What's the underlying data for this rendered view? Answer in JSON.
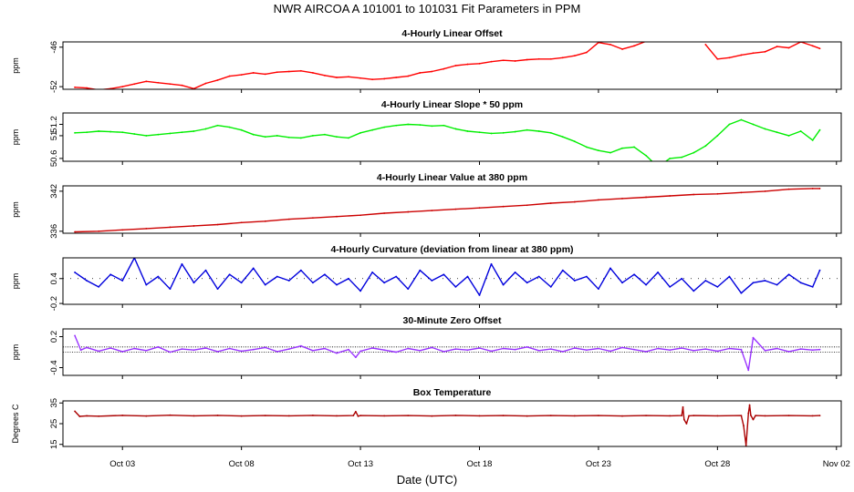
{
  "figure": {
    "title": "NWR   AIRCOA A   101001 to 101031   Fit Parameters in PPM",
    "xlabel": "Date (UTC)",
    "x_tick_labels": [
      "Oct 03",
      "Oct 08",
      "Oct 13",
      "Oct 18",
      "Oct 23",
      "Oct 28",
      "Nov 02"
    ]
  },
  "chart_data": [
    {
      "type": "line",
      "title": "4-Hourly Linear Offset",
      "ylabel": "ppm",
      "color": "#ff0000",
      "xlim": [
        0.5,
        33.2
      ],
      "ylim": [
        -52.4,
        -45.2
      ],
      "y_ticks": [
        -46,
        -52
      ],
      "x_ticks": [
        3,
        8,
        13,
        18,
        23,
        28,
        33
      ],
      "x": [
        1,
        1.5,
        2,
        2.5,
        3,
        3.5,
        4,
        4.5,
        5,
        5.5,
        6,
        6.5,
        7,
        7.5,
        8,
        8.5,
        9,
        9.5,
        10,
        10.5,
        11,
        11.5,
        12,
        12.5,
        13,
        13.5,
        14,
        14.5,
        15,
        15.5,
        16,
        16.5,
        17,
        17.5,
        18,
        18.5,
        19,
        19.5,
        20,
        20.5,
        21,
        21.5,
        22,
        22.5,
        23,
        23.5,
        24,
        24.5,
        25,
        25.5,
        26,
        26.5,
        27,
        27.5,
        28,
        28.5,
        29,
        29.5,
        30,
        30.5,
        31,
        31.5,
        32,
        32.3
      ],
      "values": [
        -52.1,
        -52.2,
        -52.5,
        -52.3,
        -52.0,
        -51.6,
        -51.2,
        -51.4,
        -51.6,
        -51.8,
        -52.3,
        -51.5,
        -51.0,
        -50.4,
        -50.2,
        -49.9,
        -50.1,
        -49.8,
        -49.7,
        -49.6,
        -49.9,
        -50.3,
        -50.6,
        -50.5,
        -50.7,
        -50.9,
        -50.8,
        -50.6,
        -50.4,
        -49.9,
        -49.7,
        -49.3,
        -48.8,
        -48.6,
        -48.5,
        -48.2,
        -48.0,
        -48.1,
        -47.9,
        -47.8,
        -47.8,
        -47.6,
        -47.3,
        -46.8,
        -45.3,
        -45.6,
        -46.3,
        -45.8,
        -45.1,
        null,
        null,
        null,
        null,
        -45.6,
        -47.8,
        -47.6,
        -47.2,
        -46.9,
        -46.7,
        -45.9,
        -46.1,
        -45.2,
        -45.8,
        -46.2
      ]
    },
    {
      "type": "line",
      "title": "4-Hourly Linear Slope * 50 ppm",
      "ylabel": "ppm",
      "color": "#00ee00",
      "xlim": [
        0.5,
        33.2
      ],
      "ylim": [
        50.55,
        51.4
      ],
      "y_ticks": [
        51.2,
        51,
        50.6
      ],
      "x_ticks": [
        3,
        8,
        13,
        18,
        23,
        28,
        33
      ],
      "x": [
        1,
        1.5,
        2,
        2.5,
        3,
        3.5,
        4,
        4.5,
        5,
        5.5,
        6,
        6.5,
        7,
        7.5,
        8,
        8.5,
        9,
        9.5,
        10,
        10.5,
        11,
        11.5,
        12,
        12.5,
        13,
        13.5,
        14,
        14.5,
        15,
        15.5,
        16,
        16.5,
        17,
        17.5,
        18,
        18.5,
        19,
        19.5,
        20,
        20.5,
        21,
        21.5,
        22,
        22.5,
        23,
        23.5,
        24,
        24.5,
        25,
        25.5,
        26,
        26.5,
        27,
        27.5,
        28,
        28.5,
        29,
        29.5,
        30,
        30.5,
        31,
        31.5,
        32,
        32.3
      ],
      "values": [
        51.05,
        51.06,
        51.08,
        51.07,
        51.06,
        51.03,
        51.0,
        51.02,
        51.04,
        51.06,
        51.08,
        51.12,
        51.18,
        51.15,
        51.1,
        51.02,
        50.98,
        51.0,
        50.97,
        50.96,
        51.0,
        51.02,
        50.98,
        50.96,
        51.05,
        51.1,
        51.15,
        51.18,
        51.2,
        51.19,
        51.17,
        51.18,
        51.12,
        51.08,
        51.06,
        51.04,
        51.05,
        51.07,
        51.1,
        51.08,
        51.05,
        50.98,
        50.9,
        50.8,
        50.74,
        50.7,
        50.78,
        50.8,
        50.65,
        50.45,
        50.6,
        50.62,
        50.7,
        50.82,
        51.0,
        51.2,
        51.28,
        51.2,
        51.12,
        51.06,
        51.0,
        51.08,
        50.92,
        51.1
      ]
    },
    {
      "type": "line",
      "title": "4-Hourly Linear Value at 380 ppm",
      "ylabel": "ppm",
      "color": "#cc0000",
      "xlim": [
        0.5,
        33.2
      ],
      "ylim": [
        335.7,
        342.8
      ],
      "y_ticks": [
        342,
        336
      ],
      "x_ticks": [
        3,
        8,
        13,
        18,
        23,
        28,
        33
      ],
      "x": [
        1,
        2,
        3,
        4,
        5,
        6,
        7,
        8,
        9,
        10,
        11,
        12,
        13,
        14,
        15,
        16,
        17,
        18,
        19,
        20,
        21,
        22,
        23,
        24,
        25,
        26,
        27,
        28,
        29,
        30,
        31,
        32,
        32.3
      ],
      "values": [
        335.9,
        336.0,
        336.2,
        336.4,
        336.6,
        336.8,
        337.0,
        337.3,
        337.5,
        337.8,
        338.0,
        338.2,
        338.4,
        338.7,
        338.9,
        339.1,
        339.3,
        339.5,
        339.7,
        339.9,
        340.2,
        340.4,
        340.7,
        340.9,
        341.1,
        341.3,
        341.5,
        341.6,
        341.8,
        342.0,
        342.3,
        342.4,
        342.4
      ]
    },
    {
      "type": "line",
      "title": "4-Hourly Curvature (deviation from linear at 380 ppm)",
      "ylabel": "ppm",
      "color": "#0000dd",
      "xlim": [
        0.5,
        33.2
      ],
      "ylim": [
        -0.22,
        0.9
      ],
      "y_ticks": [
        0.4,
        -0.2
      ],
      "reference_line": 0.4,
      "x_ticks": [
        3,
        8,
        13,
        18,
        23,
        28,
        33
      ],
      "x": [
        1,
        1.5,
        2,
        2.5,
        3,
        3.5,
        4,
        4.5,
        5,
        5.5,
        6,
        6.5,
        7,
        7.5,
        8,
        8.5,
        9,
        9.5,
        10,
        10.5,
        11,
        11.5,
        12,
        12.5,
        13,
        13.5,
        14,
        14.5,
        15,
        15.5,
        16,
        16.5,
        17,
        17.5,
        18,
        18.5,
        19,
        19.5,
        20,
        20.5,
        21,
        21.5,
        22,
        22.5,
        23,
        23.5,
        24,
        24.5,
        25,
        25.5,
        26,
        26.5,
        27,
        27.5,
        28,
        28.5,
        29,
        29.5,
        30,
        30.5,
        31,
        31.5,
        32,
        32.3
      ],
      "values": [
        0.55,
        0.35,
        0.2,
        0.5,
        0.35,
        0.9,
        0.25,
        0.45,
        0.15,
        0.75,
        0.3,
        0.6,
        0.15,
        0.5,
        0.3,
        0.65,
        0.25,
        0.45,
        0.35,
        0.6,
        0.3,
        0.5,
        0.25,
        0.4,
        0.1,
        0.55,
        0.3,
        0.45,
        0.15,
        0.6,
        0.35,
        0.5,
        0.2,
        0.45,
        0.0,
        0.75,
        0.25,
        0.55,
        0.3,
        0.45,
        0.2,
        0.6,
        0.35,
        0.45,
        0.15,
        0.65,
        0.3,
        0.5,
        0.25,
        0.55,
        0.2,
        0.4,
        0.1,
        0.35,
        0.2,
        0.45,
        0.05,
        0.3,
        0.35,
        0.25,
        0.5,
        0.3,
        0.2,
        0.6
      ]
    },
    {
      "type": "line",
      "title": "30-Minute Zero Offset",
      "ylabel": "ppm",
      "color": "#9933ff",
      "xlim": [
        0.5,
        33.2
      ],
      "ylim": [
        -0.55,
        0.35
      ],
      "y_ticks": [
        0.2,
        -0.4
      ],
      "reference_lines": [
        0.0,
        -0.1
      ],
      "x_ticks": [
        3,
        8,
        13,
        18,
        23,
        28,
        33
      ],
      "x": [
        1,
        1.25,
        1.5,
        2,
        2.5,
        3,
        3.5,
        4,
        4.5,
        5,
        5.5,
        6,
        6.5,
        7,
        7.5,
        8,
        8.5,
        9,
        9.5,
        10,
        10.5,
        11,
        11.5,
        12,
        12.5,
        12.8,
        13,
        13.5,
        14,
        14.5,
        15,
        15.5,
        16,
        16.5,
        17,
        17.5,
        18,
        18.5,
        19,
        19.5,
        20,
        20.5,
        21,
        21.5,
        22,
        22.5,
        23,
        23.5,
        24,
        24.5,
        25,
        25.5,
        26,
        26.5,
        27,
        27.5,
        28,
        28.5,
        29,
        29.3,
        29.5,
        30,
        30.5,
        31,
        31.5,
        32,
        32.3
      ],
      "values": [
        0.22,
        -0.06,
        -0.01,
        -0.08,
        -0.02,
        -0.09,
        -0.03,
        -0.07,
        0.0,
        -0.1,
        -0.04,
        -0.06,
        -0.02,
        -0.09,
        -0.03,
        -0.08,
        -0.05,
        -0.01,
        -0.09,
        -0.04,
        0.02,
        -0.07,
        -0.03,
        -0.12,
        -0.05,
        -0.2,
        -0.08,
        -0.02,
        -0.06,
        -0.1,
        -0.03,
        -0.07,
        -0.01,
        -0.09,
        -0.04,
        -0.06,
        -0.02,
        -0.08,
        -0.03,
        -0.05,
        0.0,
        -0.07,
        -0.04,
        -0.09,
        -0.02,
        -0.06,
        -0.03,
        -0.08,
        -0.01,
        -0.05,
        -0.09,
        -0.03,
        -0.06,
        -0.02,
        -0.07,
        -0.04,
        -0.08,
        -0.03,
        -0.05,
        -0.45,
        0.18,
        -0.07,
        -0.03,
        -0.09,
        -0.04,
        -0.06,
        -0.05
      ]
    },
    {
      "type": "line",
      "title": "Box Temperature",
      "ylabel": "Degrees C",
      "color": "#aa0000",
      "xlim": [
        0.5,
        33.2
      ],
      "ylim": [
        14,
        36
      ],
      "y_ticks": [
        35,
        25,
        15
      ],
      "x_ticks": [
        3,
        8,
        13,
        18,
        23,
        28,
        33
      ],
      "x": [
        1,
        1.2,
        1.5,
        2,
        3,
        4,
        5,
        6,
        7,
        8,
        9,
        10,
        11,
        12,
        12.7,
        12.8,
        12.9,
        13,
        14,
        15,
        16,
        17,
        18,
        19,
        20,
        21,
        22,
        23,
        24,
        25,
        26,
        26.5,
        26.55,
        26.6,
        26.7,
        26.8,
        27,
        28,
        29,
        29.1,
        29.2,
        29.3,
        29.35,
        29.4,
        29.5,
        29.6,
        30,
        31,
        32,
        32.3
      ],
      "values": [
        31,
        28.5,
        28.8,
        28.6,
        29,
        28.7,
        29.1,
        28.8,
        29,
        28.7,
        28.9,
        28.8,
        29,
        28.8,
        28.9,
        30.8,
        28.6,
        28.9,
        28.8,
        28.9,
        28.7,
        29,
        28.8,
        28.9,
        28.7,
        28.9,
        28.8,
        28.9,
        28.7,
        28.9,
        28.8,
        28.9,
        33,
        27,
        25,
        28.8,
        28.9,
        28.8,
        28.9,
        24,
        14.5,
        30,
        34,
        29,
        27,
        28.9,
        28.8,
        28.9,
        28.8,
        28.9
      ]
    }
  ]
}
